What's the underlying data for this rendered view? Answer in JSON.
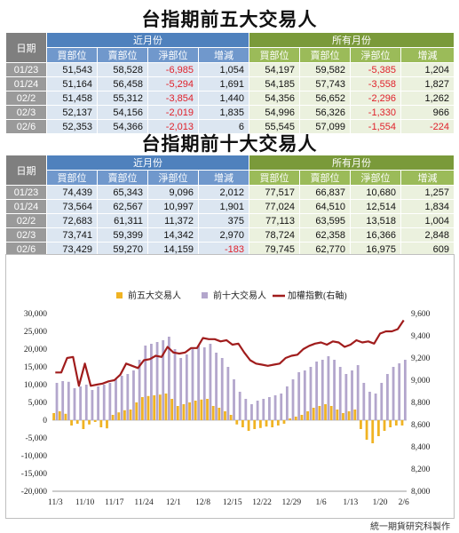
{
  "title1": "台指期前五大交易人",
  "title2": "台指期前十大交易人",
  "credit": "統一期貨研究科製作",
  "table_headers": {
    "date": "日期",
    "recent": "近月份",
    "all": "所有月份",
    "cols": [
      "買部位",
      "賣部位",
      "淨部位",
      "增減",
      "買部位",
      "賣部位",
      "淨部位",
      "增減"
    ]
  },
  "table5": [
    {
      "d": "01/23",
      "v": [
        "51,543",
        "58,528",
        "-6,985",
        "1,054",
        "54,197",
        "59,582",
        "-5,385",
        "1,204"
      ]
    },
    {
      "d": "01/24",
      "v": [
        "51,164",
        "56,458",
        "-5,294",
        "1,691",
        "54,185",
        "57,743",
        "-3,558",
        "1,827"
      ]
    },
    {
      "d": "02/2",
      "v": [
        "51,458",
        "55,312",
        "-3,854",
        "1,440",
        "54,356",
        "56,652",
        "-2,296",
        "1,262"
      ]
    },
    {
      "d": "02/3",
      "v": [
        "52,137",
        "54,156",
        "-2,019",
        "1,835",
        "54,996",
        "56,326",
        "-1,330",
        "966"
      ]
    },
    {
      "d": "02/6",
      "v": [
        "52,353",
        "54,366",
        "-2,013",
        "6",
        "55,545",
        "57,099",
        "-1,554",
        "-224"
      ]
    }
  ],
  "table10": [
    {
      "d": "01/23",
      "v": [
        "74,439",
        "65,343",
        "9,096",
        "2,012",
        "77,517",
        "66,837",
        "10,680",
        "1,257"
      ]
    },
    {
      "d": "01/24",
      "v": [
        "73,564",
        "62,567",
        "10,997",
        "1,901",
        "77,024",
        "64,510",
        "12,514",
        "1,834"
      ]
    },
    {
      "d": "02/2",
      "v": [
        "72,683",
        "61,311",
        "11,372",
        "375",
        "77,113",
        "63,595",
        "13,518",
        "1,004"
      ]
    },
    {
      "d": "02/3",
      "v": [
        "73,741",
        "59,399",
        "14,342",
        "2,970",
        "78,724",
        "62,358",
        "16,366",
        "2,848"
      ]
    },
    {
      "d": "02/6",
      "v": [
        "73,429",
        "59,270",
        "14,159",
        "-183",
        "79,745",
        "62,770",
        "16,975",
        "609"
      ]
    }
  ],
  "chart_data": {
    "type": "bar",
    "legend_placement": "top",
    "colors": {
      "top5": "#f0b323",
      "top10": "#b3a6cc",
      "index": "#a01c1c"
    },
    "left_axis": {
      "ylim": [
        -20000,
        30000
      ],
      "ticks": [
        "30,000",
        "25,000",
        "20,000",
        "15,000",
        "10,000",
        "5,000",
        "0",
        "-5,000",
        "-10,000",
        "-15,000",
        "-20,000"
      ]
    },
    "right_axis": {
      "ylim": [
        8000,
        9600
      ],
      "ticks": [
        "9,600",
        "9,400",
        "9,200",
        "9,000",
        "8,800",
        "8,600",
        "8,400",
        "8,200",
        "8,000"
      ]
    },
    "x_ticks": [
      {
        "label": "11/3",
        "i": 0
      },
      {
        "label": "11/10",
        "i": 5
      },
      {
        "label": "11/17",
        "i": 10
      },
      {
        "label": "11/24",
        "i": 15
      },
      {
        "label": "12/1",
        "i": 20
      },
      {
        "label": "12/8",
        "i": 25
      },
      {
        "label": "12/15",
        "i": 30
      },
      {
        "label": "12/22",
        "i": 35
      },
      {
        "label": "12/29",
        "i": 40
      },
      {
        "label": "1/6",
        "i": 45
      },
      {
        "label": "1/13",
        "i": 50
      },
      {
        "label": "1/20",
        "i": 55
      },
      {
        "label": "2/6",
        "i": 59
      }
    ],
    "series": [
      {
        "name": "前五大交易人",
        "axis": "left",
        "kind": "bar",
        "values": [
          2000,
          2500,
          1800,
          -1500,
          -1000,
          -2500,
          -1200,
          -500,
          -2000,
          -2300,
          1500,
          2200,
          2800,
          3000,
          5000,
          6500,
          6800,
          7000,
          7200,
          7500,
          6000,
          4000,
          4500,
          5000,
          5500,
          5800,
          6000,
          4000,
          3500,
          2500,
          1500,
          -1200,
          -2000,
          -3000,
          -2500,
          -2200,
          -1800,
          -2000,
          -1500,
          -1000,
          500,
          1000,
          1500,
          2500,
          3500,
          4000,
          4500,
          4000,
          3000,
          2000,
          2500,
          3000,
          -2500,
          -5500,
          -6500,
          -4500,
          -3000,
          -2000,
          -1500,
          -1500
        ]
      },
      {
        "name": "前十大交易人",
        "axis": "left",
        "kind": "bar",
        "values": [
          10500,
          11000,
          10800,
          9000,
          9500,
          10000,
          8500,
          9500,
          10000,
          10500,
          11500,
          12500,
          13000,
          14000,
          17000,
          21000,
          21500,
          22000,
          22500,
          23500,
          20000,
          17500,
          18500,
          20000,
          21000,
          20500,
          21500,
          19000,
          17500,
          15000,
          11500,
          8000,
          6000,
          4500,
          5500,
          6000,
          6500,
          7000,
          7500,
          9500,
          11500,
          13500,
          14000,
          15000,
          16500,
          17000,
          18000,
          17000,
          15000,
          13000,
          14000,
          15500,
          10500,
          8000,
          7500,
          10500,
          13000,
          15000,
          16000,
          17000
        ]
      },
      {
        "name": "加權指數(右軸)",
        "axis": "right",
        "kind": "line",
        "values": [
          9070,
          9070,
          9200,
          9210,
          8950,
          9150,
          8950,
          8960,
          8970,
          8990,
          9000,
          9050,
          9150,
          9130,
          9110,
          9180,
          9190,
          9220,
          9210,
          9300,
          9250,
          9240,
          9250,
          9290,
          9290,
          9380,
          9370,
          9370,
          9350,
          9360,
          9320,
          9330,
          9250,
          9180,
          9150,
          9140,
          9130,
          9140,
          9150,
          9200,
          9220,
          9230,
          9280,
          9310,
          9330,
          9340,
          9320,
          9350,
          9340,
          9300,
          9320,
          9360,
          9340,
          9350,
          9330,
          9420,
          9440,
          9440,
          9460,
          9540
        ]
      }
    ]
  }
}
